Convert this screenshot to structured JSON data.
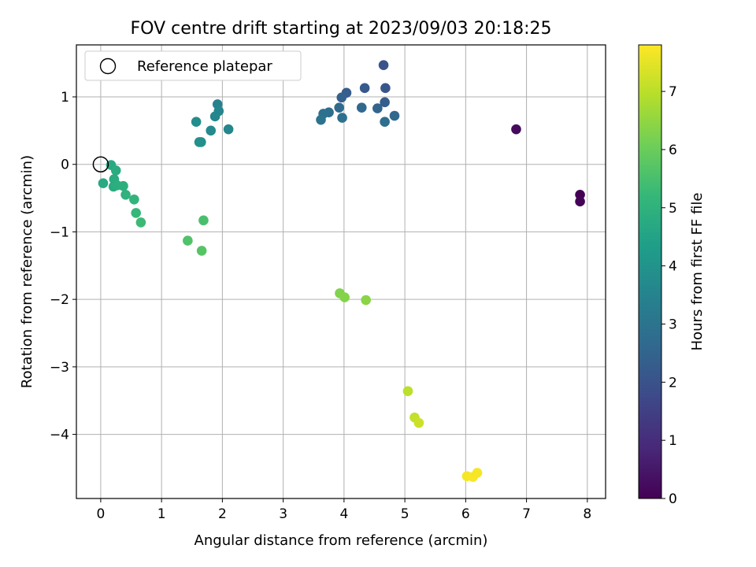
{
  "chart_data": {
    "type": "scatter",
    "title": "FOV centre drift starting at 2023/09/03 20:18:25",
    "xlabel": "Angular distance from reference (arcmin)",
    "ylabel": "Rotation from reference (arcmin)",
    "xlim": [
      -0.4,
      8.3
    ],
    "ylim": [
      -4.95,
      1.77
    ],
    "xticks": [
      0,
      1,
      2,
      3,
      4,
      5,
      6,
      7,
      8
    ],
    "yticks": [
      1,
      0,
      -1,
      -2,
      -3,
      -4
    ],
    "xtick_labels": [
      "0",
      "1",
      "2",
      "3",
      "4",
      "5",
      "6",
      "7",
      "8"
    ],
    "ytick_labels": [
      "1",
      "0",
      "−1",
      "−2",
      "−3",
      "−4"
    ],
    "grid": true,
    "legend": {
      "placement": "top-left",
      "entries": [
        "Reference platepar"
      ]
    },
    "reference_point": {
      "x": 0,
      "y": 0
    },
    "colorbar": {
      "label": "Hours from first FF file",
      "range": [
        0,
        7.8
      ],
      "ticks": [
        0,
        1,
        2,
        3,
        4,
        5,
        6,
        7
      ],
      "tick_labels": [
        "0",
        "1",
        "2",
        "3",
        "4",
        "5",
        "6",
        "7"
      ],
      "colormap": "viridis",
      "colors": [
        "#440154",
        "#482878",
        "#3e4989",
        "#31688e",
        "#26828e",
        "#1f9e89",
        "#35b779",
        "#6ece58",
        "#b5de2b",
        "#fde725"
      ]
    },
    "points": [
      {
        "x": 6.83,
        "y": 0.52,
        "t": 0.2
      },
      {
        "x": 7.88,
        "y": -0.45,
        "t": 0.0
      },
      {
        "x": 7.88,
        "y": -0.55,
        "t": 0.05
      },
      {
        "x": 4.65,
        "y": 1.47,
        "t": 2.0
      },
      {
        "x": 4.68,
        "y": 1.13,
        "t": 2.1
      },
      {
        "x": 4.34,
        "y": 1.13,
        "t": 2.2
      },
      {
        "x": 4.04,
        "y": 1.06,
        "t": 2.3
      },
      {
        "x": 3.96,
        "y": 0.99,
        "t": 2.4
      },
      {
        "x": 4.67,
        "y": 0.92,
        "t": 2.3
      },
      {
        "x": 4.55,
        "y": 0.83,
        "t": 2.5
      },
      {
        "x": 4.29,
        "y": 0.84,
        "t": 2.6
      },
      {
        "x": 3.92,
        "y": 0.84,
        "t": 2.7
      },
      {
        "x": 4.83,
        "y": 0.72,
        "t": 2.6
      },
      {
        "x": 3.75,
        "y": 0.77,
        "t": 2.8
      },
      {
        "x": 3.66,
        "y": 0.75,
        "t": 2.9
      },
      {
        "x": 3.97,
        "y": 0.69,
        "t": 2.9
      },
      {
        "x": 4.67,
        "y": 0.63,
        "t": 2.8
      },
      {
        "x": 3.62,
        "y": 0.66,
        "t": 3.0
      },
      {
        "x": 1.92,
        "y": 0.89,
        "t": 3.5
      },
      {
        "x": 1.94,
        "y": 0.79,
        "t": 3.6
      },
      {
        "x": 1.88,
        "y": 0.71,
        "t": 3.6
      },
      {
        "x": 1.57,
        "y": 0.63,
        "t": 3.8
      },
      {
        "x": 1.81,
        "y": 0.5,
        "t": 3.7
      },
      {
        "x": 2.1,
        "y": 0.52,
        "t": 3.6
      },
      {
        "x": 1.62,
        "y": 0.33,
        "t": 3.9
      },
      {
        "x": 1.65,
        "y": 0.33,
        "t": 3.9
      },
      {
        "x": 0.17,
        "y": -0.01,
        "t": 4.7
      },
      {
        "x": 0.25,
        "y": -0.09,
        "t": 4.8
      },
      {
        "x": 0.22,
        "y": -0.22,
        "t": 4.8
      },
      {
        "x": 0.04,
        "y": -0.28,
        "t": 4.7
      },
      {
        "x": 0.37,
        "y": -0.32,
        "t": 4.9
      },
      {
        "x": 0.21,
        "y": -0.33,
        "t": 4.8
      },
      {
        "x": 0.27,
        "y": -0.31,
        "t": 4.9
      },
      {
        "x": 0.41,
        "y": -0.45,
        "t": 5.0
      },
      {
        "x": 0.55,
        "y": -0.52,
        "t": 5.1
      },
      {
        "x": 0.58,
        "y": -0.72,
        "t": 5.2
      },
      {
        "x": 0.66,
        "y": -0.86,
        "t": 5.3
      },
      {
        "x": 1.69,
        "y": -0.83,
        "t": 5.5
      },
      {
        "x": 1.43,
        "y": -1.13,
        "t": 5.6
      },
      {
        "x": 1.66,
        "y": -1.28,
        "t": 5.7
      },
      {
        "x": 3.93,
        "y": -1.91,
        "t": 6.3
      },
      {
        "x": 4.01,
        "y": -1.97,
        "t": 6.35
      },
      {
        "x": 4.36,
        "y": -2.01,
        "t": 6.4
      },
      {
        "x": 5.05,
        "y": -3.36,
        "t": 7.0
      },
      {
        "x": 5.16,
        "y": -3.75,
        "t": 7.1
      },
      {
        "x": 5.23,
        "y": -3.83,
        "t": 7.2
      },
      {
        "x": 6.02,
        "y": -4.62,
        "t": 7.7
      },
      {
        "x": 6.12,
        "y": -4.63,
        "t": 7.75
      },
      {
        "x": 6.19,
        "y": -4.57,
        "t": 7.7
      }
    ]
  }
}
